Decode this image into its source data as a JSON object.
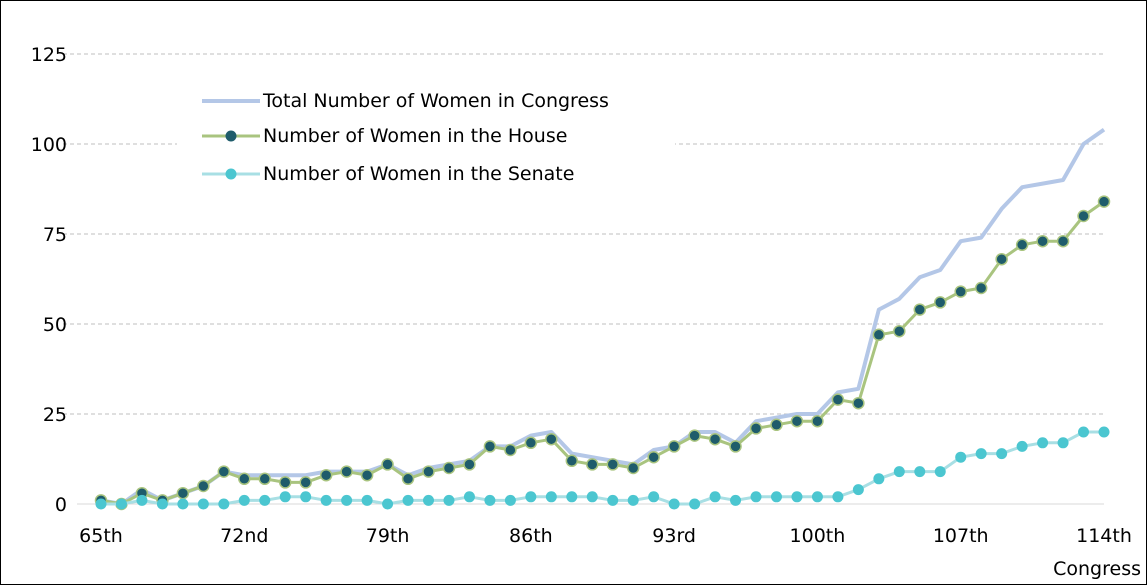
{
  "chart_data": {
    "type": "line",
    "title": "",
    "xlabel": "Congress",
    "ylabel": "",
    "ylim": [
      0,
      125
    ],
    "yticks": [
      0,
      25,
      50,
      75,
      100,
      125
    ],
    "x": [
      65,
      66,
      67,
      68,
      69,
      70,
      71,
      72,
      73,
      74,
      75,
      76,
      77,
      78,
      79,
      80,
      81,
      82,
      83,
      84,
      85,
      86,
      87,
      88,
      89,
      90,
      91,
      92,
      93,
      94,
      95,
      96,
      97,
      98,
      99,
      100,
      101,
      102,
      103,
      104,
      105,
      106,
      107,
      108,
      109,
      110,
      111,
      112,
      113,
      114
    ],
    "xtick_values": [
      65,
      72,
      79,
      86,
      93,
      100,
      107,
      114
    ],
    "xtick_labels": [
      "65th",
      "72nd",
      "79th",
      "86th",
      "93rd",
      "100th",
      "107th",
      "114th"
    ],
    "grid": "horizontal dashed",
    "legend_position": "top-left",
    "series": [
      {
        "name": "Total Number of Women in Congress",
        "color": "#b4c7e7",
        "markers": false,
        "values": [
          1,
          0,
          4,
          1,
          3,
          5,
          9,
          8,
          8,
          8,
          8,
          9,
          9,
          9,
          11,
          8,
          10,
          11,
          12,
          16,
          16,
          19,
          20,
          14,
          13,
          12,
          11,
          15,
          16,
          20,
          20,
          17,
          23,
          24,
          25,
          25,
          31,
          32,
          54,
          57,
          63,
          65,
          73,
          74,
          82,
          88,
          89,
          90,
          100,
          104
        ]
      },
      {
        "name": "Number of Women in the House",
        "color": "#a9c47f",
        "marker_color": "#1f5c6b",
        "markers": true,
        "values": [
          1,
          0,
          3,
          1,
          3,
          5,
          9,
          7,
          7,
          6,
          6,
          8,
          9,
          8,
          11,
          7,
          9,
          10,
          11,
          16,
          15,
          17,
          18,
          12,
          11,
          11,
          10,
          13,
          16,
          19,
          18,
          16,
          21,
          22,
          23,
          23,
          29,
          28,
          47,
          48,
          54,
          56,
          59,
          60,
          68,
          72,
          73,
          73,
          80,
          84
        ]
      },
      {
        "name": "Number of Women in the Senate",
        "color": "#a8dfe4",
        "marker_color": "#4bc6d0",
        "markers": true,
        "values": [
          0,
          0,
          1,
          0,
          0,
          0,
          0,
          1,
          1,
          2,
          2,
          1,
          1,
          1,
          0,
          1,
          1,
          1,
          2,
          1,
          1,
          2,
          2,
          2,
          2,
          1,
          1,
          2,
          0,
          0,
          2,
          1,
          2,
          2,
          2,
          2,
          2,
          4,
          7,
          9,
          9,
          9,
          13,
          14,
          14,
          16,
          17,
          17,
          20,
          20
        ]
      }
    ]
  }
}
